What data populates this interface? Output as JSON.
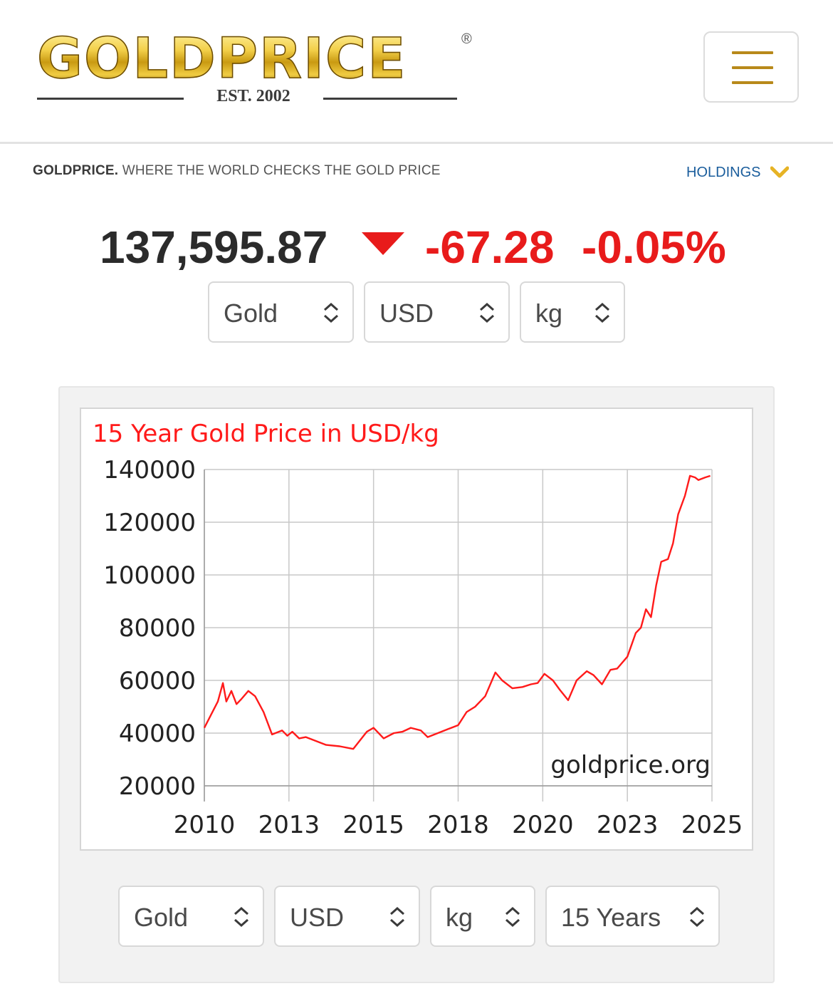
{
  "header": {
    "logo_text": "GOLDPRICE",
    "logo_reg": "®",
    "logo_est": "EST. 2002",
    "menu_icon": "hamburger-icon"
  },
  "tagline": {
    "brand": "GOLDPRICE.",
    "text": " WHERE THE WORLD CHECKS THE GOLD PRICE"
  },
  "holdings": {
    "label": "HOLDINGS",
    "icon": "chevron-down-icon"
  },
  "quote": {
    "price": "137,595.87",
    "direction_icon": "down-triangle-icon",
    "change": "-67.28",
    "change_pct": "-0.05%"
  },
  "top_selectors": {
    "metal": "Gold",
    "currency": "USD",
    "unit": "kg"
  },
  "bottom_selectors": {
    "metal": "Gold",
    "currency": "USD",
    "unit": "kg",
    "period": "15 Years"
  },
  "colors": {
    "accent_gold": "#b8891a",
    "negative": "#e81b1b",
    "link": "#1a5d9c",
    "series": "#ff1a1a"
  },
  "chart_data": {
    "type": "line",
    "title": "15 Year Gold Price in USD/kg",
    "watermark": "goldprice.org",
    "xlabel": "",
    "ylabel": "",
    "xlim": [
      2010,
      2025
    ],
    "ylim": [
      20000,
      140000
    ],
    "x_ticks": [
      2010,
      2012.5,
      2015,
      2017.5,
      2020,
      2022.5,
      2025
    ],
    "x_tick_labels": [
      "2010",
      "2013",
      "2015",
      "2018",
      "2020",
      "2023",
      "2025"
    ],
    "y_ticks": [
      20000,
      40000,
      60000,
      80000,
      100000,
      120000,
      140000
    ],
    "y_tick_labels": [
      "20000",
      "40000",
      "60000",
      "80000",
      "100000",
      "120000",
      "140000"
    ],
    "grid": true,
    "series": [
      {
        "name": "",
        "x": [
          2010.0,
          2010.2,
          2010.4,
          2010.55,
          2010.65,
          2010.8,
          2010.95,
          2011.1,
          2011.3,
          2011.5,
          2011.75,
          2012.0,
          2012.3,
          2012.45,
          2012.6,
          2012.8,
          2013.0,
          2013.3,
          2013.6,
          2014.0,
          2014.4,
          2014.8,
          2015.0,
          2015.3,
          2015.6,
          2015.85,
          2016.1,
          2016.4,
          2016.6,
          2016.9,
          2017.2,
          2017.5,
          2017.75,
          2018.0,
          2018.3,
          2018.6,
          2018.8,
          2019.1,
          2019.4,
          2019.65,
          2019.85,
          2020.05,
          2020.3,
          2020.5,
          2020.75,
          2021.0,
          2021.3,
          2021.5,
          2021.75,
          2022.0,
          2022.2,
          2022.5,
          2022.75,
          2022.9,
          2023.05,
          2023.2,
          2023.35,
          2023.5,
          2023.7,
          2023.85,
          2024.0,
          2024.2,
          2024.35,
          2024.5,
          2024.6,
          2024.8,
          2024.95
        ],
        "y": [
          42000,
          47000,
          52000,
          59000,
          52000,
          56000,
          51000,
          53000,
          56000,
          54000,
          48000,
          39500,
          41000,
          39000,
          40500,
          38000,
          38500,
          37000,
          35500,
          35000,
          34000,
          40500,
          42000,
          38000,
          40000,
          40500,
          42000,
          41000,
          38500,
          40000,
          41500,
          43000,
          48000,
          50000,
          54000,
          63000,
          60000,
          57000,
          57500,
          58500,
          59000,
          62500,
          60000,
          56500,
          52500,
          60000,
          63500,
          62000,
          58500,
          64000,
          64500,
          69000,
          78000,
          80000,
          87000,
          84000,
          96000,
          105000,
          106000,
          112000,
          123000,
          130000,
          137595,
          137000,
          136000,
          137000,
          137595
        ]
      }
    ]
  }
}
